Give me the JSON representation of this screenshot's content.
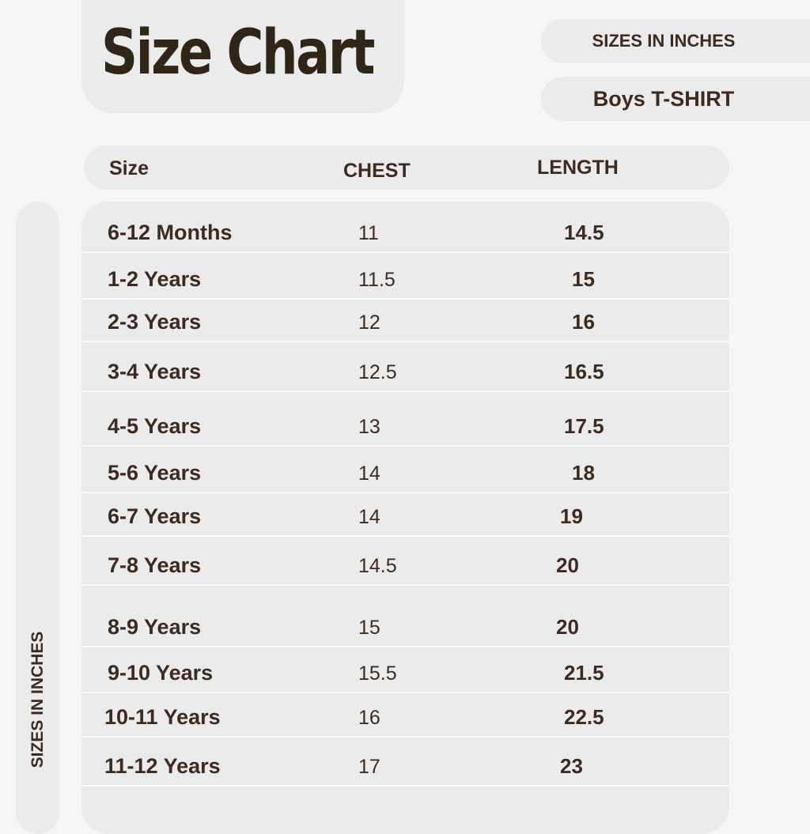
{
  "title": "Size Chart",
  "units_label": "SIZES IN INCHES",
  "product": "Boys T-SHIRT",
  "side_label": "SIZES IN INCHES",
  "columns": [
    "Size",
    "CHEST",
    "LENGTH"
  ],
  "rows": [
    [
      "6-12 Months",
      "11",
      "14.5"
    ],
    [
      "1-2 Years",
      "11.5",
      "15"
    ],
    [
      "2-3 Years",
      "12",
      "16"
    ],
    [
      "3-4 Years",
      "12.5",
      "16.5"
    ],
    [
      "4-5 Years",
      "13",
      "17.5"
    ],
    [
      "5-6 Years",
      "14",
      "18"
    ],
    [
      "6-7 Years",
      "14",
      "19"
    ],
    [
      "7-8 Years",
      "14.5",
      "20"
    ],
    [
      "8-9 Years",
      "15",
      "20"
    ],
    [
      "9-10 Years",
      "15.5",
      "21.5"
    ],
    [
      "10-11 Years",
      "16",
      "22.5"
    ],
    [
      "11-12 Years",
      "17",
      "23"
    ]
  ],
  "colors": {
    "title": "#2f2617",
    "text": "#3d2a20",
    "panel": "#ebebeb",
    "background": "#f6f6f6"
  }
}
